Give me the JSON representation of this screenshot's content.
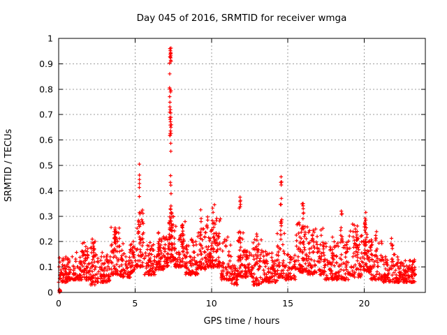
{
  "title": "Day 045 of 2016, SRMTID for receiver wmga",
  "chart_data": {
    "type": "scatter",
    "title": "Day 045 of 2016, SRMTID for receiver wmga",
    "xlabel": "GPS time / hours",
    "ylabel": "SRMTID / TECUs",
    "xlim": [
      0,
      24
    ],
    "ylim": [
      0,
      1
    ],
    "xticks": [
      "0",
      "5",
      "10",
      "15",
      "20"
    ],
    "xtick_values": [
      0,
      5,
      10,
      15,
      20
    ],
    "yticks": [
      "0",
      "0.1",
      "0.2",
      "0.3",
      "0.4",
      "0.5",
      "0.6",
      "0.7",
      "0.8",
      "0.9",
      "1"
    ],
    "ytick_values": [
      0,
      0.1,
      0.2,
      0.3,
      0.4,
      0.5,
      0.6,
      0.7,
      0.8,
      0.9,
      1
    ],
    "grid": true,
    "legend": "none",
    "marker": "plus",
    "marker_color": "#ff0000",
    "grid_color": "#9b9b9b",
    "axis_color": "#000000",
    "x_data_range": [
      0.02,
      23.35
    ],
    "peak_points": [
      [
        7.28,
        0.96
      ],
      [
        7.31,
        0.952
      ],
      [
        7.33,
        0.945
      ],
      [
        5.28,
        0.505
      ],
      [
        14.56,
        0.455
      ],
      [
        11.87,
        0.375
      ],
      [
        16.0,
        0.35
      ],
      [
        10.2,
        0.345
      ],
      [
        9.3,
        0.325
      ],
      [
        18.5,
        0.32
      ],
      [
        20.1,
        0.315
      ],
      [
        0.08,
        0.005
      ]
    ],
    "point_cloud": {
      "seed": 20160045,
      "comment_baseline_segments": "each entry: [x0_hours, x1_hours, y_min_TECUs, y_max_TECUs, n_points, low_bias]",
      "baseline_segments": [
        [
          0.02,
          0.18,
          0.0,
          0.012,
          9,
          1.0
        ],
        [
          0.0,
          0.6,
          0.04,
          0.14,
          55,
          1.8
        ],
        [
          0.6,
          1.5,
          0.05,
          0.16,
          70,
          2.0
        ],
        [
          1.5,
          2.1,
          0.05,
          0.2,
          55,
          2.0
        ],
        [
          2.1,
          2.5,
          0.03,
          0.21,
          40,
          1.8
        ],
        [
          2.5,
          3.4,
          0.04,
          0.16,
          70,
          1.8
        ],
        [
          3.4,
          4.0,
          0.07,
          0.26,
          60,
          2.0
        ],
        [
          4.0,
          4.7,
          0.06,
          0.2,
          55,
          2.0
        ],
        [
          4.7,
          5.1,
          0.08,
          0.22,
          35,
          1.8
        ],
        [
          5.1,
          5.6,
          0.1,
          0.33,
          50,
          2.0
        ],
        [
          5.6,
          6.3,
          0.07,
          0.2,
          60,
          2.0
        ],
        [
          6.3,
          6.9,
          0.09,
          0.24,
          55,
          2.0
        ],
        [
          6.9,
          7.2,
          0.1,
          0.23,
          30,
          1.8
        ],
        [
          7.2,
          7.6,
          0.12,
          0.31,
          45,
          1.5
        ],
        [
          7.6,
          8.3,
          0.1,
          0.28,
          60,
          2.0
        ],
        [
          8.3,
          9.1,
          0.07,
          0.22,
          70,
          2.0
        ],
        [
          9.1,
          9.7,
          0.09,
          0.28,
          55,
          1.8
        ],
        [
          9.7,
          10.6,
          0.1,
          0.3,
          85,
          2.0
        ],
        [
          10.6,
          11.3,
          0.05,
          0.22,
          60,
          2.2
        ],
        [
          11.3,
          11.7,
          0.03,
          0.12,
          35,
          1.5
        ],
        [
          11.7,
          12.1,
          0.06,
          0.25,
          40,
          2.0
        ],
        [
          12.1,
          12.7,
          0.06,
          0.17,
          55,
          1.8
        ],
        [
          12.7,
          13.3,
          0.03,
          0.22,
          55,
          2.0
        ],
        [
          13.3,
          14.3,
          0.04,
          0.17,
          80,
          1.8
        ],
        [
          14.3,
          14.8,
          0.06,
          0.25,
          40,
          2.0
        ],
        [
          14.8,
          15.5,
          0.05,
          0.15,
          55,
          1.8
        ],
        [
          15.5,
          16.3,
          0.08,
          0.28,
          70,
          1.8
        ],
        [
          16.3,
          17.3,
          0.07,
          0.26,
          80,
          2.0
        ],
        [
          17.3,
          18.3,
          0.05,
          0.2,
          80,
          2.0
        ],
        [
          18.3,
          19.0,
          0.05,
          0.24,
          55,
          2.0
        ],
        [
          19.0,
          19.8,
          0.06,
          0.27,
          60,
          1.8
        ],
        [
          19.8,
          20.4,
          0.08,
          0.26,
          50,
          1.8
        ],
        [
          20.4,
          21.2,
          0.05,
          0.22,
          60,
          2.0
        ],
        [
          21.2,
          22.2,
          0.04,
          0.15,
          75,
          1.8
        ],
        [
          22.2,
          23.35,
          0.04,
          0.13,
          110,
          1.6
        ]
      ],
      "comment_spike_columns": "each entry: [x_hours, x_jitter, y_min, y_max, n_points]",
      "spike_columns": [
        [
          7.3,
          0.06,
          0.9,
          0.965,
          11
        ],
        [
          7.3,
          0.05,
          0.71,
          0.9,
          9
        ],
        [
          7.32,
          0.06,
          0.615,
          0.71,
          14
        ],
        [
          7.35,
          0.04,
          0.32,
          0.6,
          9
        ],
        [
          7.35,
          0.08,
          0.21,
          0.32,
          22
        ],
        [
          5.28,
          0.05,
          0.3,
          0.515,
          7
        ],
        [
          3.7,
          0.06,
          0.15,
          0.265,
          10
        ],
        [
          6.55,
          0.07,
          0.14,
          0.245,
          9
        ],
        [
          8.1,
          0.07,
          0.15,
          0.285,
          9
        ],
        [
          9.3,
          0.06,
          0.16,
          0.325,
          9
        ],
        [
          10.1,
          0.07,
          0.18,
          0.335,
          9
        ],
        [
          10.35,
          0.06,
          0.15,
          0.3,
          8
        ],
        [
          11.87,
          0.06,
          0.14,
          0.375,
          11
        ],
        [
          13.0,
          0.06,
          0.13,
          0.24,
          8
        ],
        [
          14.56,
          0.05,
          0.2,
          0.46,
          16
        ],
        [
          16.0,
          0.07,
          0.18,
          0.35,
          11
        ],
        [
          16.65,
          0.06,
          0.15,
          0.28,
          8
        ],
        [
          17.95,
          0.05,
          0.1,
          0.22,
          7
        ],
        [
          18.5,
          0.05,
          0.18,
          0.32,
          7
        ],
        [
          19.5,
          0.09,
          0.12,
          0.27,
          12
        ],
        [
          20.1,
          0.07,
          0.14,
          0.315,
          14
        ],
        [
          20.8,
          0.06,
          0.1,
          0.25,
          8
        ],
        [
          21.8,
          0.06,
          0.08,
          0.23,
          7
        ],
        [
          2.3,
          0.05,
          0.1,
          0.21,
          6
        ],
        [
          1.7,
          0.06,
          0.08,
          0.19,
          6
        ]
      ]
    }
  }
}
